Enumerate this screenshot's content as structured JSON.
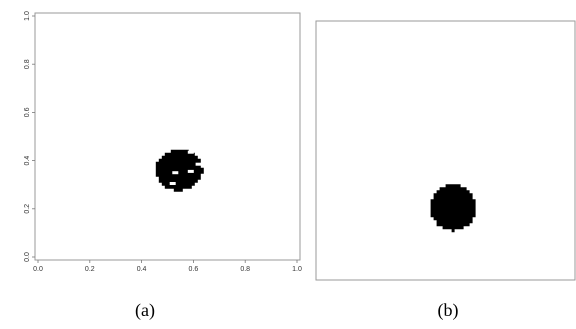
{
  "chart_data": [
    {
      "type": "heatmap",
      "title": "",
      "xlabel": "",
      "ylabel": "",
      "xlim": [
        0,
        1
      ],
      "ylim": [
        0,
        1
      ],
      "x_ticks": [
        "0.0",
        "0.2",
        "0.4",
        "0.6",
        "0.8",
        "1.0"
      ],
      "y_ticks": [
        "0.0",
        "0.2",
        "0.4",
        "0.6",
        "0.8",
        "1.0"
      ],
      "blob": {
        "color": "#000000",
        "center_x": 0.545,
        "center_y": 0.36,
        "radius_x": 0.09,
        "radius_y": 0.085,
        "holes": [
          {
            "x": 0.59,
            "y": 0.435
          },
          {
            "x": 0.53,
            "y": 0.35
          },
          {
            "x": 0.59,
            "y": 0.355
          },
          {
            "x": 0.62,
            "y": 0.385
          },
          {
            "x": 0.52,
            "y": 0.305
          }
        ]
      },
      "caption": "(a)"
    },
    {
      "type": "heatmap",
      "title": "",
      "blob": {
        "color": "#000000",
        "center_x": 0.53,
        "center_y": 0.28,
        "radius_x": 0.0875,
        "radius_y": 0.09
      },
      "caption": "(b)"
    }
  ],
  "colors": {
    "frame": "#9a9a9a",
    "blob": "#000000",
    "background": "#ffffff"
  }
}
